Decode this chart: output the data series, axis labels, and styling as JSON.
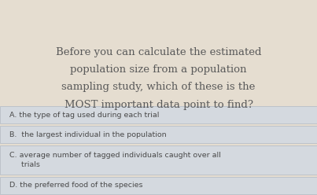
{
  "bg_color": "#e5ddd0",
  "answer_bg_color": "#d4d9df",
  "answer_border_color": "#b8bfc8",
  "question_text_color": "#5a5a5a",
  "answer_text_color": "#4a4a4a",
  "question_lines": [
    "Before you can calculate the estimated",
    "population size from a population",
    "sampling study, which of these is the",
    "MOST important data point to find?"
  ],
  "answers": [
    [
      "A.",
      " the type of tag used during each trial"
    ],
    [
      "B.",
      "  the largest individual in the population"
    ],
    [
      "C.",
      " average number of tagged individuals caught over all\n     trials"
    ],
    [
      "D.",
      " the preferred food of the species"
    ]
  ],
  "fig_width": 4.03,
  "fig_height": 2.48,
  "dpi": 100
}
